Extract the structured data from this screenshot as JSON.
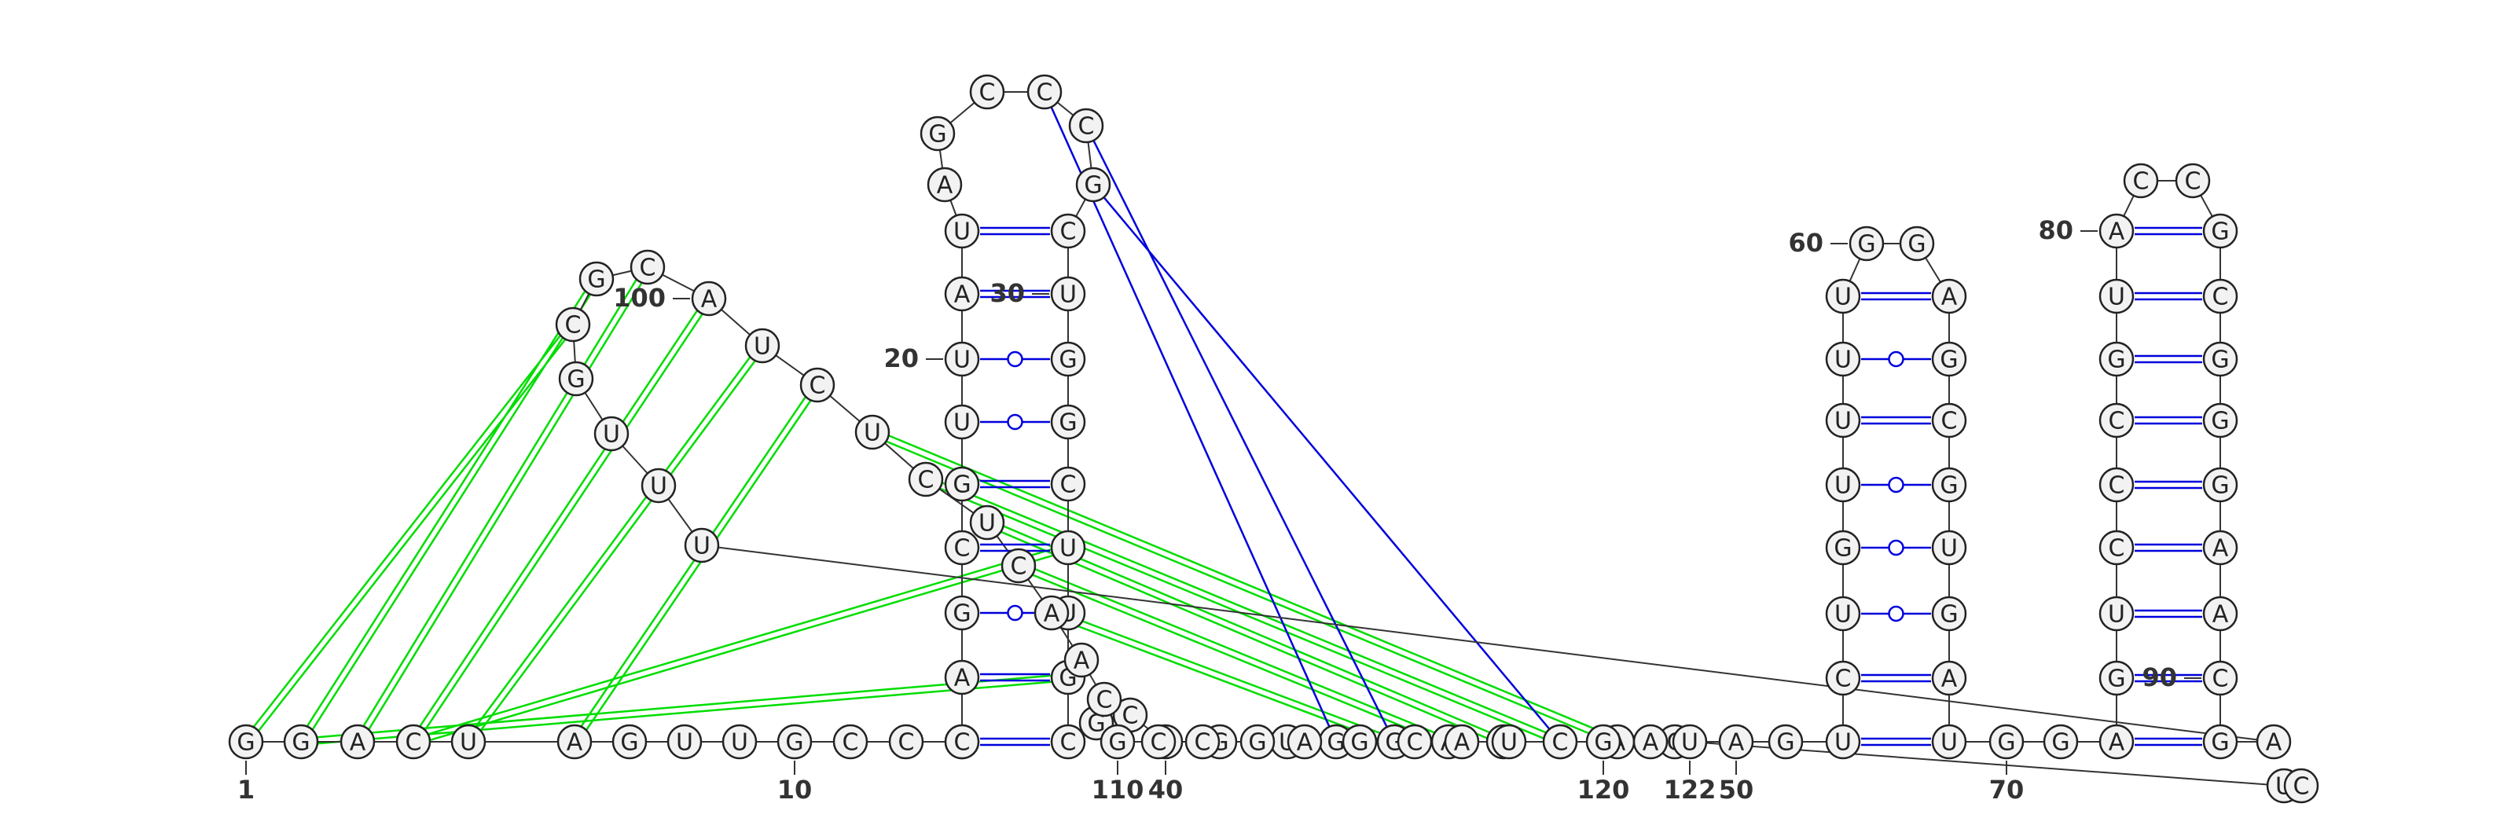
{
  "sequence": "GGACUAGUUGCCGCAGCGUUAUAGCCCGCUGGCUUGCGCGGUGGAUAACAGUCUGUUUUGGAGCGUGAUGGAGUCCCGUACCGCGGGAACGAUUUGCGCAUCUCUCAACGCCGAGCAUCGAUUC",
  "position_labels": [
    {
      "pos": 1,
      "text": "1"
    },
    {
      "pos": 10,
      "text": "10"
    },
    {
      "pos": 20,
      "text": "20"
    },
    {
      "pos": 30,
      "text": "30"
    },
    {
      "pos": 40,
      "text": "40"
    },
    {
      "pos": 50,
      "text": "50"
    },
    {
      "pos": 60,
      "text": "60"
    },
    {
      "pos": 70,
      "text": "70"
    },
    {
      "pos": 80,
      "text": "80"
    },
    {
      "pos": 90,
      "text": "90"
    },
    {
      "pos": 100,
      "text": "100"
    },
    {
      "pos": 110,
      "text": "110"
    },
    {
      "pos": 120,
      "text": "120"
    },
    {
      "pos": 122,
      "text": "122"
    }
  ],
  "colors": {
    "canonical_pair": "#0000dd",
    "tertiary_interaction": "#00dd00",
    "backbone": "#333333",
    "nucleotide_fill": "#f2f2f2"
  }
}
